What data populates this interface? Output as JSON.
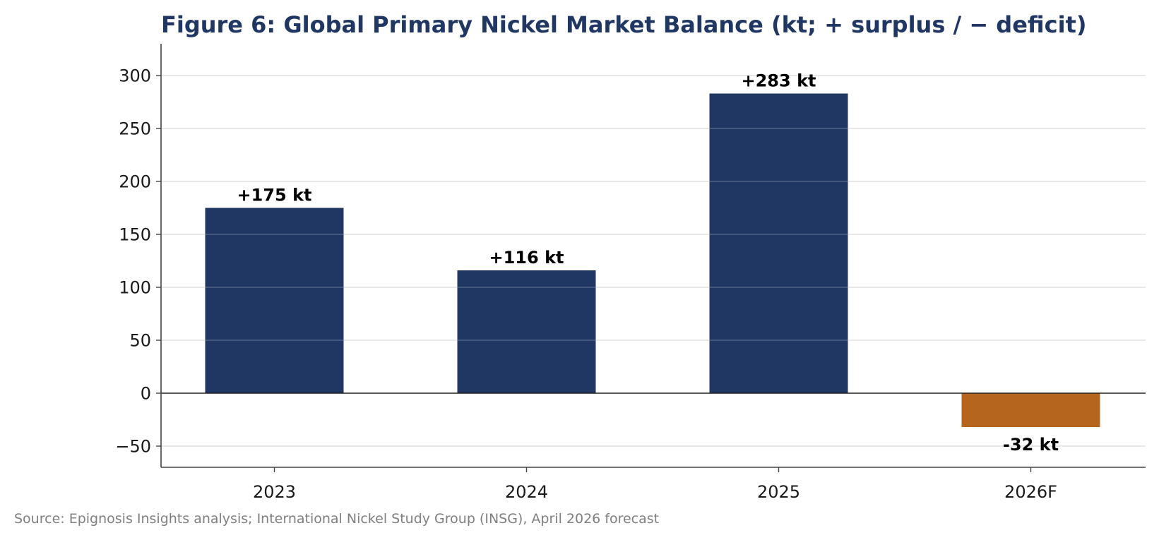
{
  "chart_data": {
    "type": "bar",
    "title": "Figure 6: Global Primary Nickel Market Balance (kt; + surplus / − deficit)",
    "xlabel": "",
    "ylabel": "",
    "categories": [
      "2023",
      "2024",
      "2025",
      "2026F"
    ],
    "values": [
      175,
      116,
      283,
      -32
    ],
    "data_labels": [
      "+175 kt",
      "+116 kt",
      "+283 kt",
      "-32 kt"
    ],
    "ylim": [
      -70,
      330
    ],
    "yticks": [
      -50,
      0,
      50,
      100,
      150,
      200,
      250,
      300
    ],
    "ytick_labels": [
      "−50",
      "0",
      "50",
      "100",
      "150",
      "200",
      "250",
      "300"
    ],
    "grid": true,
    "legend": "none",
    "source": "Source: Epignosis Insights analysis; International Nickel Study Group (INSG), April 2026 forecast"
  },
  "colors": {
    "surplus": "#1f3762",
    "deficit": "#b5651d",
    "title": "#1f3762",
    "grid": "#e0e0e0",
    "axis": "#444444",
    "zero_line": "#222222",
    "source": "#808080"
  }
}
